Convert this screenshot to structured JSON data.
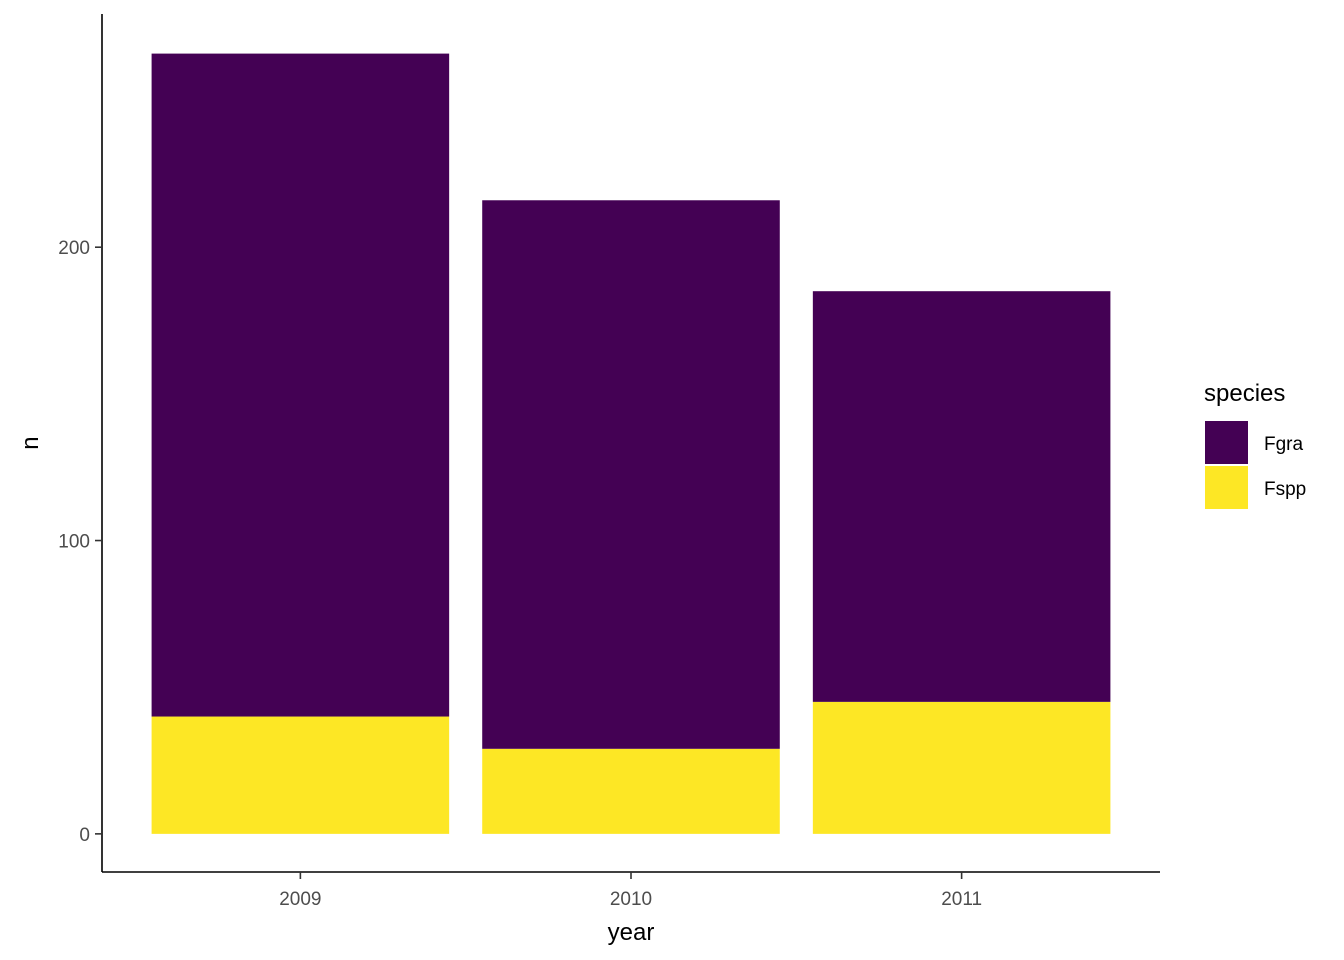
{
  "chart_data": {
    "type": "bar",
    "stacked": true,
    "categories": [
      "2009",
      "2010",
      "2011"
    ],
    "series": [
      {
        "name": "Fspp",
        "color": "#FDE725",
        "values": [
          40,
          29,
          45
        ]
      },
      {
        "name": "Fgra",
        "color": "#440154",
        "values": [
          226,
          187,
          140
        ]
      }
    ],
    "xlabel": "year",
    "ylabel": "n",
    "ylim": [
      -13,
      279.5
    ],
    "yticks": [
      0,
      100,
      200
    ],
    "ytick_labels": [
      "0",
      "100",
      "200"
    ],
    "grid": false,
    "legend": {
      "title": "species",
      "placement": "right",
      "entries": [
        {
          "label": "Fgra",
          "color": "#440154"
        },
        {
          "label": "Fspp",
          "color": "#FDE725"
        }
      ]
    }
  }
}
